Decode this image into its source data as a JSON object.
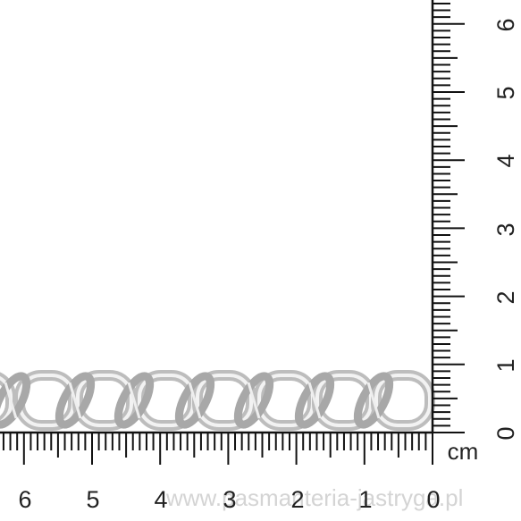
{
  "scene": {
    "subject": "silver curb chain on a ruler",
    "chain_color": "#c9c9c9",
    "background_color": "#ffffff"
  },
  "ruler": {
    "unit_label": "cm",
    "bottom_labels": [
      "6",
      "5",
      "4",
      "3",
      "2",
      "1",
      "0"
    ],
    "side_labels": [
      "6",
      "5",
      "4",
      "3",
      "2",
      "1",
      "0"
    ],
    "color": "#111111"
  },
  "watermark": {
    "text": "www.pasmanteria-jastryga.pl"
  }
}
